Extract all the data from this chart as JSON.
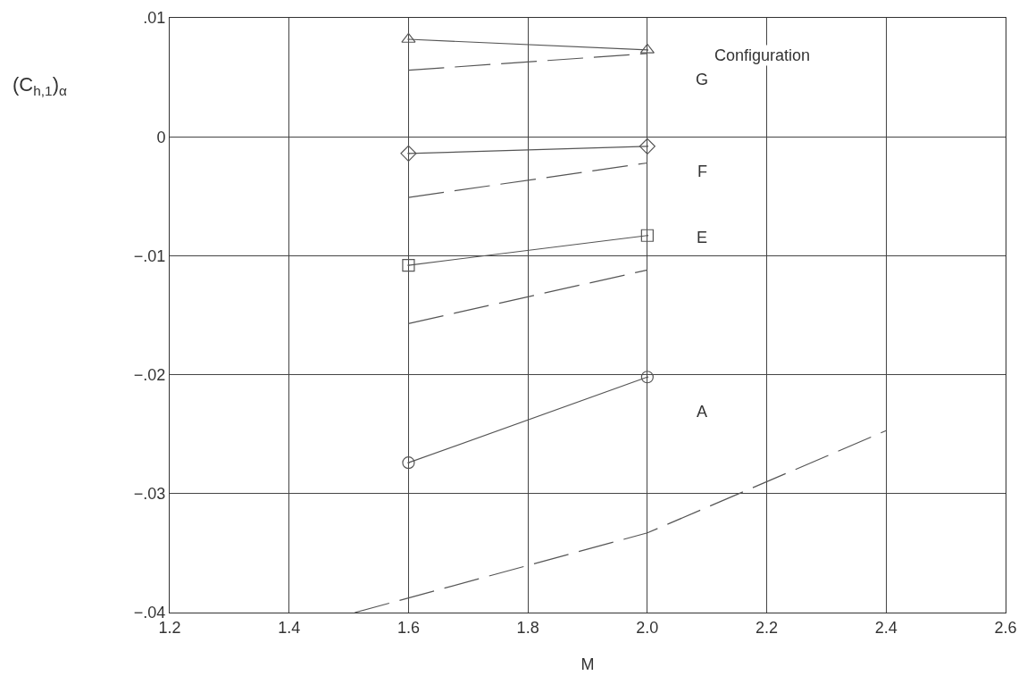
{
  "chart_data": {
    "type": "line",
    "xlabel": "M",
    "ylabel": "(C$_{h,1}$)$_{α}$",
    "xlim": [
      1.2,
      2.6
    ],
    "xticks": [
      1.2,
      1.4,
      1.6,
      1.8,
      {
        "value": 2.0,
        "label": "2.0"
      },
      2.2,
      2.4,
      2.6
    ],
    "ylim": [
      -0.04,
      0.01
    ],
    "yticks": [
      {
        "value": -0.04,
        "label": "−.04"
      },
      {
        "value": -0.03,
        "label": "−.03"
      },
      {
        "value": -0.02,
        "label": "−.02"
      },
      {
        "value": -0.01,
        "label": "−.01"
      },
      0,
      {
        "value": 0.01,
        "label": ".01"
      }
    ],
    "grid": true,
    "series": [
      {
        "color": "#555555",
        "marker": "triangle",
        "line_style": "solid",
        "x": [
          1.6,
          2.0
        ],
        "values": [
          0.0082,
          0.0073
        ]
      },
      {
        "color": "#555555",
        "marker": "none",
        "line_style": "dashed",
        "x": [
          1.6,
          2.0
        ],
        "values": [
          0.0056,
          0.007
        ]
      },
      {
        "color": "#555555",
        "marker": "diamond",
        "line_style": "solid",
        "x": [
          1.6,
          2.0
        ],
        "values": [
          -0.0014,
          -0.0008
        ]
      },
      {
        "color": "#555555",
        "marker": "none",
        "line_style": "dashed",
        "x": [
          1.6,
          2.0
        ],
        "values": [
          -0.0051,
          -0.0022
        ]
      },
      {
        "color": "#555555",
        "marker": "square",
        "line_style": "solid",
        "x": [
          1.6,
          2.0
        ],
        "values": [
          -0.0108,
          -0.0083
        ]
      },
      {
        "color": "#555555",
        "marker": "none",
        "line_style": "dashed",
        "x": [
          1.6,
          2.0
        ],
        "values": [
          -0.0157,
          -0.0112
        ]
      },
      {
        "color": "#555555",
        "marker": "circle",
        "line_style": "solid",
        "x": [
          1.6,
          2.0
        ],
        "values": [
          -0.0274,
          -0.0202
        ]
      },
      {
        "color": "#555555",
        "marker": "none",
        "line_style": "dashed",
        "x": [
          1.51,
          2.0,
          2.4
        ],
        "values": [
          -0.04,
          -0.0333,
          -0.0247
        ]
      }
    ],
    "annotations": [
      "Configuration",
      "G",
      "F",
      "E",
      "A"
    ]
  }
}
